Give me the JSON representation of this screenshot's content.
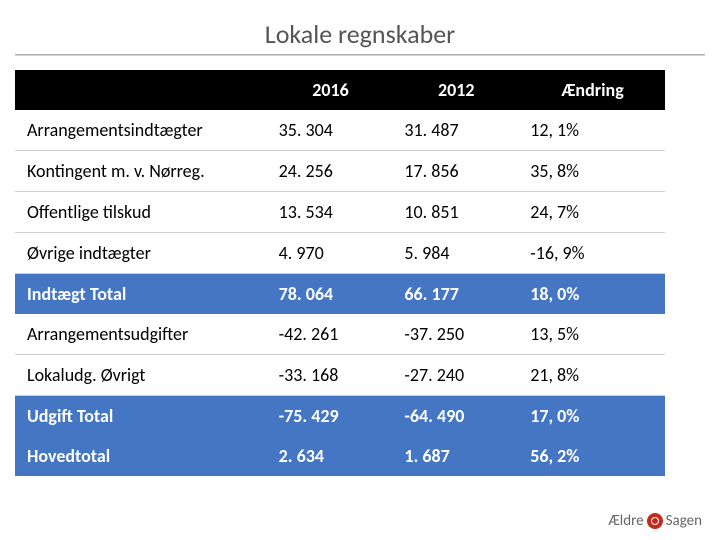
{
  "title": "Lokale regnskaber",
  "table": {
    "type": "table",
    "header_bg": "#000000",
    "header_color": "#ffffff",
    "row_bg": "#ffffff",
    "row_color": "#000000",
    "highlight_bg": "#4476c3",
    "highlight_color": "#ffffff",
    "border_color": "#cfcfcf",
    "font_size": 18,
    "columns": [
      "",
      "2016",
      "2012",
      "Ændring"
    ],
    "rows": [
      {
        "label": "Arrangementsindtægter",
        "v1": "35. 304",
        "v2": "31. 487",
        "v3": "12, 1%",
        "style": "normal"
      },
      {
        "label": "Kontingent m. v. Nørreg.",
        "v1": "24. 256",
        "v2": "17. 856",
        "v3": "35, 8%",
        "style": "normal"
      },
      {
        "label": "Offentlige tilskud",
        "v1": "13. 534",
        "v2": "10. 851",
        "v3": "24, 7%",
        "style": "normal"
      },
      {
        "label": "Øvrige indtægter",
        "v1": "4. 970",
        "v2": "5. 984",
        "v3": "-16, 9%",
        "style": "normal"
      },
      {
        "label": "Indtægt Total",
        "v1": "78. 064",
        "v2": "66. 177",
        "v3": "18, 0%",
        "style": "highlight"
      },
      {
        "label": "Arrangementsudgifter",
        "v1": "-42. 261",
        "v2": "-37. 250",
        "v3": "13, 5%",
        "style": "normal"
      },
      {
        "label": "Lokaludg. Øvrigt",
        "v1": "-33. 168",
        "v2": "-27. 240",
        "v3": "21, 8%",
        "style": "normal"
      },
      {
        "label": "Udgift Total",
        "v1": "-75. 429",
        "v2": "-64. 490",
        "v3": "17, 0%",
        "style": "highlight"
      },
      {
        "label": "Hovedtotal",
        "v1": "2. 634",
        "v2": "1. 687",
        "v3": "56, 2%",
        "style": "highlight"
      }
    ]
  },
  "logo": {
    "brand_pre": "Ældre",
    "brand_post": "Sagen"
  }
}
